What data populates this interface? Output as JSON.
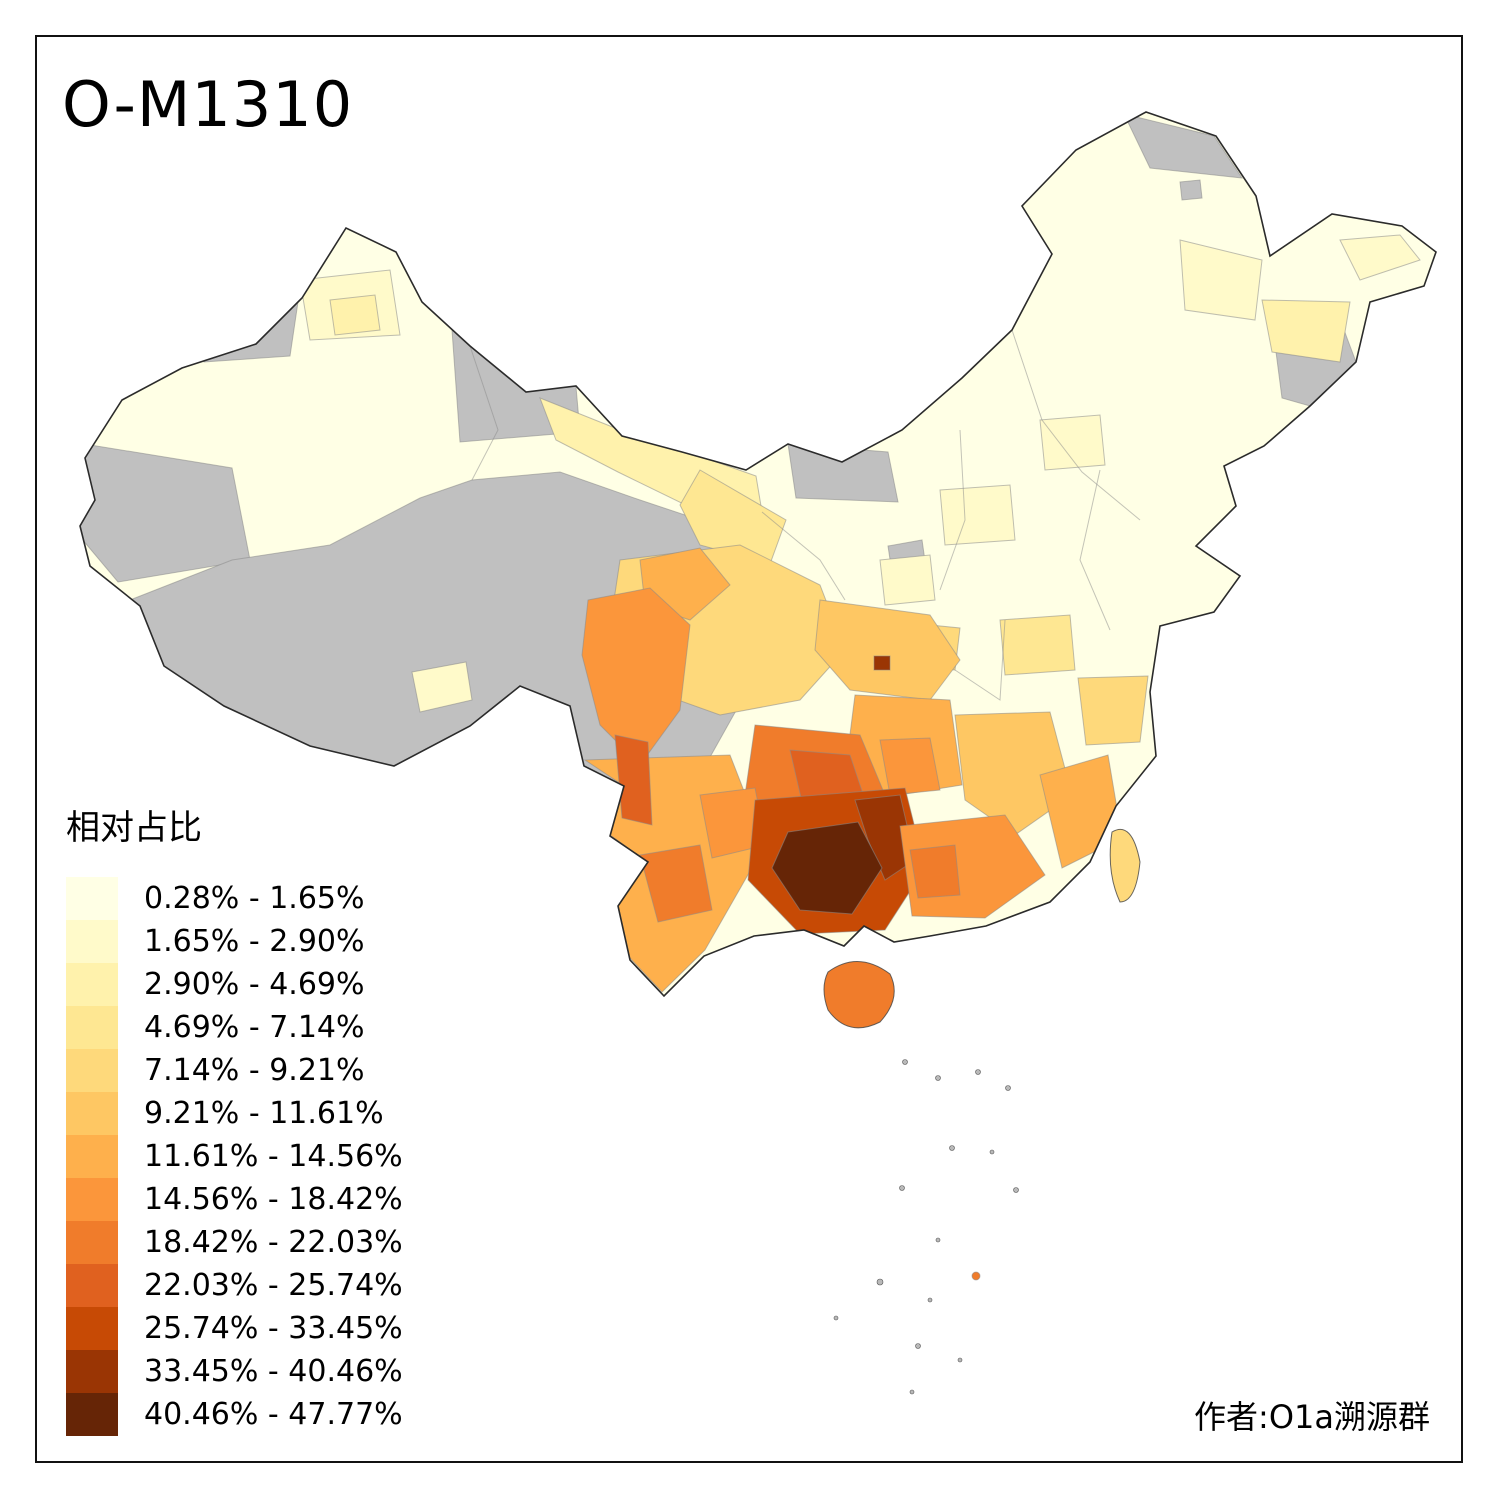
{
  "title": "O-M1310",
  "legend": {
    "title": "相对占比",
    "no_data_color": "#C0C0C0",
    "classes": [
      {
        "label": "0.28% - 1.65%",
        "color": "#FFFFE5"
      },
      {
        "label": "1.65% - 2.90%",
        "color": "#FFFACA"
      },
      {
        "label": "2.90% - 4.69%",
        "color": "#FFF2AC"
      },
      {
        "label": "4.69% - 7.14%",
        "color": "#FEE792"
      },
      {
        "label": "7.14% - 9.21%",
        "color": "#FED97B"
      },
      {
        "label": "9.21% - 11.61%",
        "color": "#FEC763"
      },
      {
        "label": "11.61% - 14.56%",
        "color": "#FEB04C"
      },
      {
        "label": "14.56% - 18.42%",
        "color": "#FB963B"
      },
      {
        "label": "18.42% - 22.03%",
        "color": "#F07C2B"
      },
      {
        "label": "22.03% - 25.74%",
        "color": "#E0611F"
      },
      {
        "label": "25.74% - 33.45%",
        "color": "#C74A05"
      },
      {
        "label": "33.45% - 40.46%",
        "color": "#9A3504"
      },
      {
        "label": "40.46% - 47.77%",
        "color": "#662506"
      }
    ]
  },
  "attribution": "作者:O1a溯源群"
}
